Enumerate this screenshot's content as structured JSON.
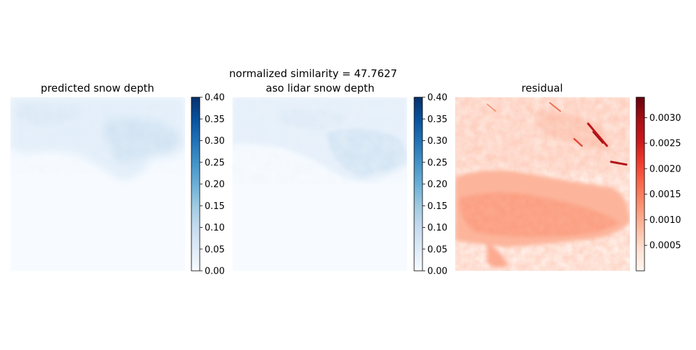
{
  "figure": {
    "suptitle": "normalized similarity = 47.7627"
  },
  "chart_data": [
    {
      "type": "heatmap",
      "title": "predicted snow depth",
      "colormap": "Blues",
      "color_range": [
        0.0,
        0.4
      ],
      "colorbar_ticks": [
        "0.00",
        "0.05",
        "0.10",
        "0.15",
        "0.20",
        "0.25",
        "0.30",
        "0.35",
        "0.40"
      ],
      "colorbar_tick_values": [
        0.0,
        0.05,
        0.1,
        0.15,
        0.2,
        0.25,
        0.3,
        0.35,
        0.4
      ],
      "axes_visible": false
    },
    {
      "type": "heatmap",
      "title": "aso lidar snow depth",
      "colormap": "Blues",
      "color_range": [
        0.0,
        0.4
      ],
      "colorbar_ticks": [
        "0.00",
        "0.05",
        "0.10",
        "0.15",
        "0.20",
        "0.25",
        "0.30",
        "0.35",
        "0.40"
      ],
      "colorbar_tick_values": [
        0.0,
        0.05,
        0.1,
        0.15,
        0.2,
        0.25,
        0.3,
        0.35,
        0.4
      ],
      "axes_visible": false
    },
    {
      "type": "heatmap",
      "title": "residual",
      "colormap": "Reds",
      "color_range": [
        0.0,
        0.0034
      ],
      "colorbar_ticks": [
        "0.0005",
        "0.0010",
        "0.0015",
        "0.0020",
        "0.0025",
        "0.0030"
      ],
      "colorbar_tick_values": [
        0.0005,
        0.001,
        0.0015,
        0.002,
        0.0025,
        0.003
      ],
      "axes_visible": false
    }
  ]
}
